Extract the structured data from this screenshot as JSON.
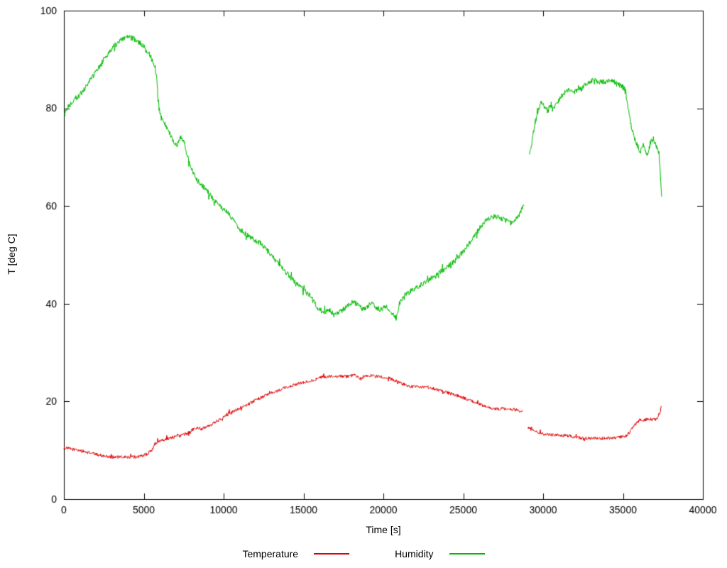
{
  "chart_data": {
    "type": "line",
    "title": "",
    "xlabel": "Time [s]",
    "ylabel": "T [deg C]",
    "xlim": [
      0,
      40000
    ],
    "ylim": [
      0,
      100
    ],
    "xticks": [
      0,
      5000,
      10000,
      15000,
      20000,
      25000,
      30000,
      35000,
      40000
    ],
    "yticks": [
      0,
      20,
      40,
      60,
      80,
      100
    ],
    "grid": false,
    "legend_position": "bottom-center",
    "axis_color": "#000000",
    "background_color": "#ffffff",
    "series": [
      {
        "name": "Temperature",
        "color": "#e00000",
        "noise": 0.32,
        "segments": [
          [
            [
              0,
              10.5
            ],
            [
              400,
              10.3
            ],
            [
              800,
              10.1
            ],
            [
              1200,
              9.8
            ],
            [
              1600,
              9.5
            ],
            [
              2000,
              9.2
            ],
            [
              2400,
              8.9
            ],
            [
              2800,
              8.7
            ],
            [
              3200,
              8.6
            ],
            [
              3600,
              8.6
            ],
            [
              4000,
              8.6
            ],
            [
              4400,
              8.6
            ],
            [
              4800,
              8.8
            ],
            [
              5200,
              9.2
            ],
            [
              5500,
              10.0
            ],
            [
              5700,
              11.3
            ],
            [
              5900,
              11.8
            ],
            [
              6100,
              12.1
            ],
            [
              6500,
              12.4
            ],
            [
              6900,
              12.7
            ],
            [
              7300,
              13.0
            ],
            [
              7700,
              13.4
            ],
            [
              8000,
              14.2
            ],
            [
              8300,
              14.6
            ],
            [
              8600,
              14.4
            ],
            [
              9000,
              15.0
            ],
            [
              9400,
              15.6
            ],
            [
              9800,
              16.4
            ],
            [
              10200,
              17.4
            ],
            [
              10600,
              18.0
            ],
            [
              11000,
              18.6
            ],
            [
              11400,
              19.2
            ],
            [
              11800,
              19.9
            ],
            [
              12200,
              20.6
            ],
            [
              12600,
              21.2
            ],
            [
              13000,
              21.7
            ],
            [
              13400,
              22.2
            ],
            [
              13800,
              22.7
            ],
            [
              14200,
              23.2
            ],
            [
              14600,
              23.5
            ],
            [
              15000,
              23.9
            ],
            [
              15400,
              24.2
            ],
            [
              15800,
              24.6
            ],
            [
              16200,
              25.0
            ],
            [
              16600,
              25.1
            ],
            [
              17000,
              25.0
            ],
            [
              17400,
              25.2
            ],
            [
              17800,
              25.1
            ],
            [
              18200,
              25.3
            ],
            [
              18600,
              24.6
            ],
            [
              18800,
              25.2
            ],
            [
              19200,
              25.3
            ],
            [
              19600,
              25.1
            ],
            [
              20000,
              25.0
            ],
            [
              20400,
              24.7
            ],
            [
              20800,
              24.2
            ],
            [
              21200,
              23.6
            ],
            [
              21600,
              23.1
            ],
            [
              22000,
              23.0
            ],
            [
              22400,
              23.0
            ],
            [
              22800,
              22.9
            ],
            [
              23200,
              22.6
            ],
            [
              23600,
              22.2
            ],
            [
              24000,
              21.8
            ],
            [
              24400,
              21.4
            ],
            [
              24800,
              21.0
            ],
            [
              25200,
              20.5
            ],
            [
              25600,
              20.0
            ],
            [
              26000,
              19.4
            ],
            [
              26400,
              18.9
            ],
            [
              26800,
              18.6
            ],
            [
              27200,
              18.5
            ],
            [
              27600,
              18.5
            ],
            [
              28000,
              18.4
            ],
            [
              28400,
              18.2
            ],
            [
              28700,
              17.9
            ]
          ],
          [
            [
              29050,
              14.6
            ],
            [
              29300,
              14.2
            ],
            [
              29700,
              13.6
            ],
            [
              30100,
              13.3
            ],
            [
              30500,
              13.1
            ],
            [
              30900,
              13.2
            ],
            [
              31300,
              13.0
            ],
            [
              31700,
              12.9
            ],
            [
              32100,
              12.6
            ],
            [
              32500,
              12.5
            ],
            [
              32900,
              12.4
            ],
            [
              33300,
              12.5
            ],
            [
              33700,
              12.4
            ],
            [
              34100,
              12.5
            ],
            [
              34500,
              12.5
            ],
            [
              34900,
              12.8
            ],
            [
              35200,
              12.9
            ],
            [
              35450,
              13.8
            ],
            [
              35650,
              14.8
            ],
            [
              35850,
              15.6
            ],
            [
              36050,
              16.2
            ],
            [
              36350,
              16.2
            ],
            [
              36650,
              16.4
            ],
            [
              36950,
              16.3
            ],
            [
              37150,
              16.6
            ],
            [
              37300,
              17.5
            ],
            [
              37400,
              19.0
            ]
          ]
        ]
      },
      {
        "name": "Humidity",
        "color": "#00bb00",
        "noise": 0.55,
        "segments": [
          [
            [
              0,
              78.5
            ],
            [
              300,
              80.5
            ],
            [
              600,
              81.5
            ],
            [
              900,
              82.5
            ],
            [
              1200,
              83.5
            ],
            [
              1600,
              85.5
            ],
            [
              2000,
              87.5
            ],
            [
              2400,
              89.5
            ],
            [
              2800,
              91.5
            ],
            [
              3200,
              93.0
            ],
            [
              3600,
              94.0
            ],
            [
              4000,
              94.5
            ],
            [
              4400,
              94.3
            ],
            [
              4800,
              93.3
            ],
            [
              5100,
              92.3
            ],
            [
              5400,
              90.8
            ],
            [
              5600,
              89.3
            ],
            [
              5800,
              86.5
            ],
            [
              5950,
              80.0
            ],
            [
              6100,
              78.0
            ],
            [
              6300,
              77.0
            ],
            [
              6600,
              75.0
            ],
            [
              6900,
              73.0
            ],
            [
              7100,
              72.5
            ],
            [
              7300,
              74.0
            ],
            [
              7500,
              73.5
            ],
            [
              7700,
              70.5
            ],
            [
              8000,
              67.5
            ],
            [
              8300,
              65.5
            ],
            [
              8700,
              64.0
            ],
            [
              9100,
              62.5
            ],
            [
              9500,
              61.0
            ],
            [
              9900,
              59.5
            ],
            [
              10300,
              58.5
            ],
            [
              10700,
              56.5
            ],
            [
              11100,
              55.0
            ],
            [
              11500,
              54.0
            ],
            [
              11900,
              53.0
            ],
            [
              12300,
              52.5
            ],
            [
              12700,
              51.0
            ],
            [
              13100,
              49.5
            ],
            [
              13500,
              48.0
            ],
            [
              13900,
              46.5
            ],
            [
              14300,
              45.0
            ],
            [
              14700,
              44.0
            ],
            [
              15100,
              42.5
            ],
            [
              15400,
              41.8
            ],
            [
              15700,
              40.0
            ],
            [
              16000,
              38.8
            ],
            [
              16300,
              38.3
            ],
            [
              16600,
              38.8
            ],
            [
              16900,
              37.8
            ],
            [
              17200,
              38.2
            ],
            [
              17500,
              38.8
            ],
            [
              17800,
              39.8
            ],
            [
              18100,
              40.3
            ],
            [
              18400,
              40.0
            ],
            [
              18700,
              38.8
            ],
            [
              19000,
              39.5
            ],
            [
              19300,
              40.3
            ],
            [
              19600,
              39.0
            ],
            [
              19900,
              38.8
            ],
            [
              20200,
              39.5
            ],
            [
              20500,
              38.2
            ],
            [
              20800,
              37.0
            ],
            [
              21000,
              40.0
            ],
            [
              21300,
              41.8
            ],
            [
              21700,
              42.5
            ],
            [
              22100,
              43.3
            ],
            [
              22500,
              44.2
            ],
            [
              22900,
              45.0
            ],
            [
              23300,
              45.9
            ],
            [
              23700,
              46.8
            ],
            [
              24100,
              47.8
            ],
            [
              24500,
              48.8
            ],
            [
              24900,
              50.3
            ],
            [
              25300,
              52.0
            ],
            [
              25700,
              53.8
            ],
            [
              26100,
              55.8
            ],
            [
              26500,
              57.3
            ],
            [
              26900,
              57.9
            ],
            [
              27300,
              57.6
            ],
            [
              27700,
              57.0
            ],
            [
              28000,
              56.5
            ],
            [
              28300,
              57.2
            ],
            [
              28500,
              58.2
            ],
            [
              28700,
              59.5
            ],
            [
              28800,
              60.5
            ]
          ],
          [
            [
              29150,
              70.5
            ],
            [
              29300,
              73.5
            ],
            [
              29500,
              77.0
            ],
            [
              29700,
              79.8
            ],
            [
              29900,
              81.2
            ],
            [
              30100,
              80.2
            ],
            [
              30300,
              79.5
            ],
            [
              30500,
              80.8
            ],
            [
              30700,
              80.0
            ],
            [
              31000,
              81.8
            ],
            [
              31300,
              83.2
            ],
            [
              31600,
              83.8
            ],
            [
              32000,
              83.4
            ],
            [
              32400,
              84.0
            ],
            [
              32800,
              85.3
            ],
            [
              33200,
              85.8
            ],
            [
              33600,
              85.4
            ],
            [
              34000,
              85.4
            ],
            [
              34300,
              85.8
            ],
            [
              34600,
              85.0
            ],
            [
              34900,
              84.6
            ],
            [
              35100,
              84.0
            ],
            [
              35300,
              80.5
            ],
            [
              35500,
              76.5
            ],
            [
              35700,
              74.0
            ],
            [
              35900,
              72.3
            ],
            [
              36100,
              71.2
            ],
            [
              36300,
              72.5
            ],
            [
              36500,
              70.3
            ],
            [
              36700,
              72.8
            ],
            [
              36900,
              73.8
            ],
            [
              37100,
              72.3
            ],
            [
              37250,
              71.0
            ],
            [
              37350,
              66.0
            ],
            [
              37420,
              62.0
            ]
          ]
        ]
      }
    ]
  }
}
